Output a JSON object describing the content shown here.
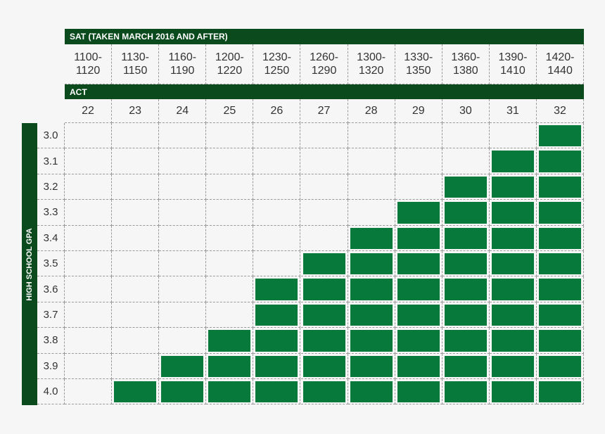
{
  "sat_header": "SAT (TAKEN MARCH 2016 AND AFTER)",
  "sat_ranges": [
    [
      "1100-",
      "1120"
    ],
    [
      "1130-",
      "1150"
    ],
    [
      "1160-",
      "1190"
    ],
    [
      "1200-",
      "1220"
    ],
    [
      "1230-",
      "1250"
    ],
    [
      "1260-",
      "1290"
    ],
    [
      "1300-",
      "1320"
    ],
    [
      "1330-",
      "1350"
    ],
    [
      "1360-",
      "1380"
    ],
    [
      "1390-",
      "1410"
    ],
    [
      "1420-",
      "1440"
    ]
  ],
  "act_header": "ACT",
  "act_scores": [
    "22",
    "23",
    "24",
    "25",
    "26",
    "27",
    "28",
    "29",
    "30",
    "31",
    "32"
  ],
  "gpa_header": "HIGH SCHOOL GPA",
  "rows": [
    {
      "gpa": "3.0",
      "qualified": [
        false,
        false,
        false,
        false,
        false,
        false,
        false,
        false,
        false,
        false,
        true
      ]
    },
    {
      "gpa": "3.1",
      "qualified": [
        false,
        false,
        false,
        false,
        false,
        false,
        false,
        false,
        false,
        true,
        true
      ]
    },
    {
      "gpa": "3.2",
      "qualified": [
        false,
        false,
        false,
        false,
        false,
        false,
        false,
        false,
        true,
        true,
        true
      ]
    },
    {
      "gpa": "3.3",
      "qualified": [
        false,
        false,
        false,
        false,
        false,
        false,
        false,
        true,
        true,
        true,
        true
      ]
    },
    {
      "gpa": "3.4",
      "qualified": [
        false,
        false,
        false,
        false,
        false,
        false,
        true,
        true,
        true,
        true,
        true
      ]
    },
    {
      "gpa": "3.5",
      "qualified": [
        false,
        false,
        false,
        false,
        false,
        true,
        true,
        true,
        true,
        true,
        true
      ]
    },
    {
      "gpa": "3.6",
      "qualified": [
        false,
        false,
        false,
        false,
        true,
        true,
        true,
        true,
        true,
        true,
        true
      ]
    },
    {
      "gpa": "3.7",
      "qualified": [
        false,
        false,
        false,
        false,
        true,
        true,
        true,
        true,
        true,
        true,
        true
      ]
    },
    {
      "gpa": "3.8",
      "qualified": [
        false,
        false,
        false,
        true,
        true,
        true,
        true,
        true,
        true,
        true,
        true
      ]
    },
    {
      "gpa": "3.9",
      "qualified": [
        false,
        false,
        true,
        true,
        true,
        true,
        true,
        true,
        true,
        true,
        true
      ]
    },
    {
      "gpa": "4.0",
      "qualified": [
        false,
        true,
        true,
        true,
        true,
        true,
        true,
        true,
        true,
        true,
        true
      ]
    }
  ]
}
